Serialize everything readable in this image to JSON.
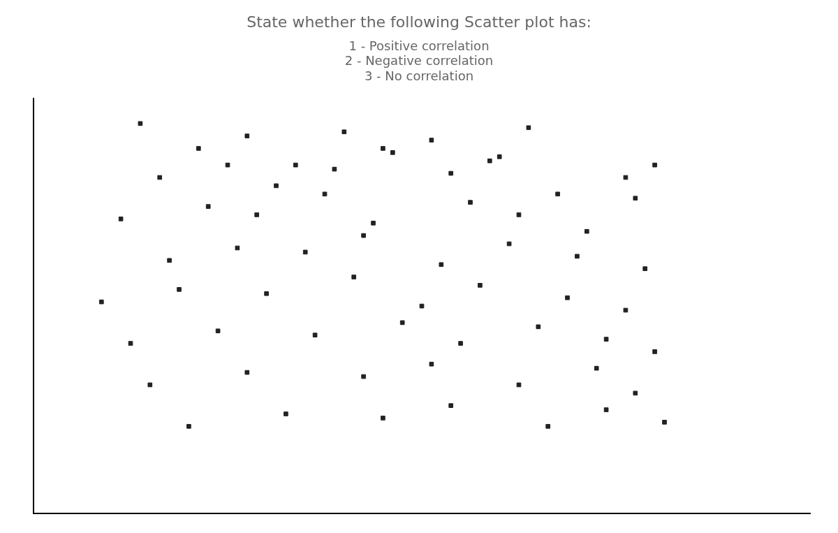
{
  "chart_data": {
    "type": "scatter",
    "title": "State whether the following Scatter plot has:",
    "annotations": [
      "1 - Positive correlation",
      "2 - Negative correlation",
      "3 - No correlation"
    ],
    "x": [
      0.55,
      0.85,
      1.1,
      1.35,
      1.6,
      1.85,
      2.05,
      2.35,
      2.55,
      0.65,
      1.0,
      1.25,
      1.55,
      1.8,
      2.15,
      2.4,
      2.7,
      3.05,
      3.2,
      0.45,
      0.9,
      1.15,
      1.5,
      1.75,
      2.25,
      2.5,
      2.85,
      3.1,
      0.7,
      1.05,
      1.4,
      1.7,
      2.1,
      2.45,
      2.8,
      3.15,
      0.35,
      0.75,
      1.2,
      1.65,
      2.0,
      2.3,
      2.75,
      3.05,
      0.5,
      0.95,
      1.45,
      1.9,
      2.2,
      2.6,
      2.95,
      3.2,
      0.6,
      1.1,
      1.7,
      2.05,
      2.5,
      2.9,
      3.1,
      0.8,
      1.3,
      1.8,
      2.15,
      2.65,
      2.95,
      3.25
    ],
    "values": [
      4.7,
      4.4,
      4.55,
      4.2,
      4.6,
      4.35,
      4.5,
      4.25,
      4.65,
      4.05,
      4.2,
      3.95,
      4.15,
      4.4,
      4.1,
      4.3,
      3.85,
      4.05,
      4.2,
      3.55,
      3.7,
      3.6,
      3.85,
      3.5,
      3.75,
      3.6,
      3.4,
      3.8,
      3.05,
      3.2,
      3.15,
      3.35,
      3.0,
      3.25,
      3.1,
      2.95,
      2.55,
      2.7,
      2.65,
      2.85,
      2.5,
      2.75,
      2.6,
      2.45,
      2.05,
      2.2,
      2.15,
      2.3,
      2.05,
      2.25,
      2.1,
      1.95,
      1.55,
      1.7,
      1.65,
      1.8,
      1.55,
      1.75,
      1.45,
      1.05,
      1.2,
      1.15,
      1.3,
      1.05,
      1.25,
      1.1
    ],
    "color": "#222222",
    "marker": "square",
    "xlim": [
      0,
      4.0
    ],
    "ylim": [
      0,
      5.0
    ],
    "grid": false,
    "tick_labels": false
  }
}
